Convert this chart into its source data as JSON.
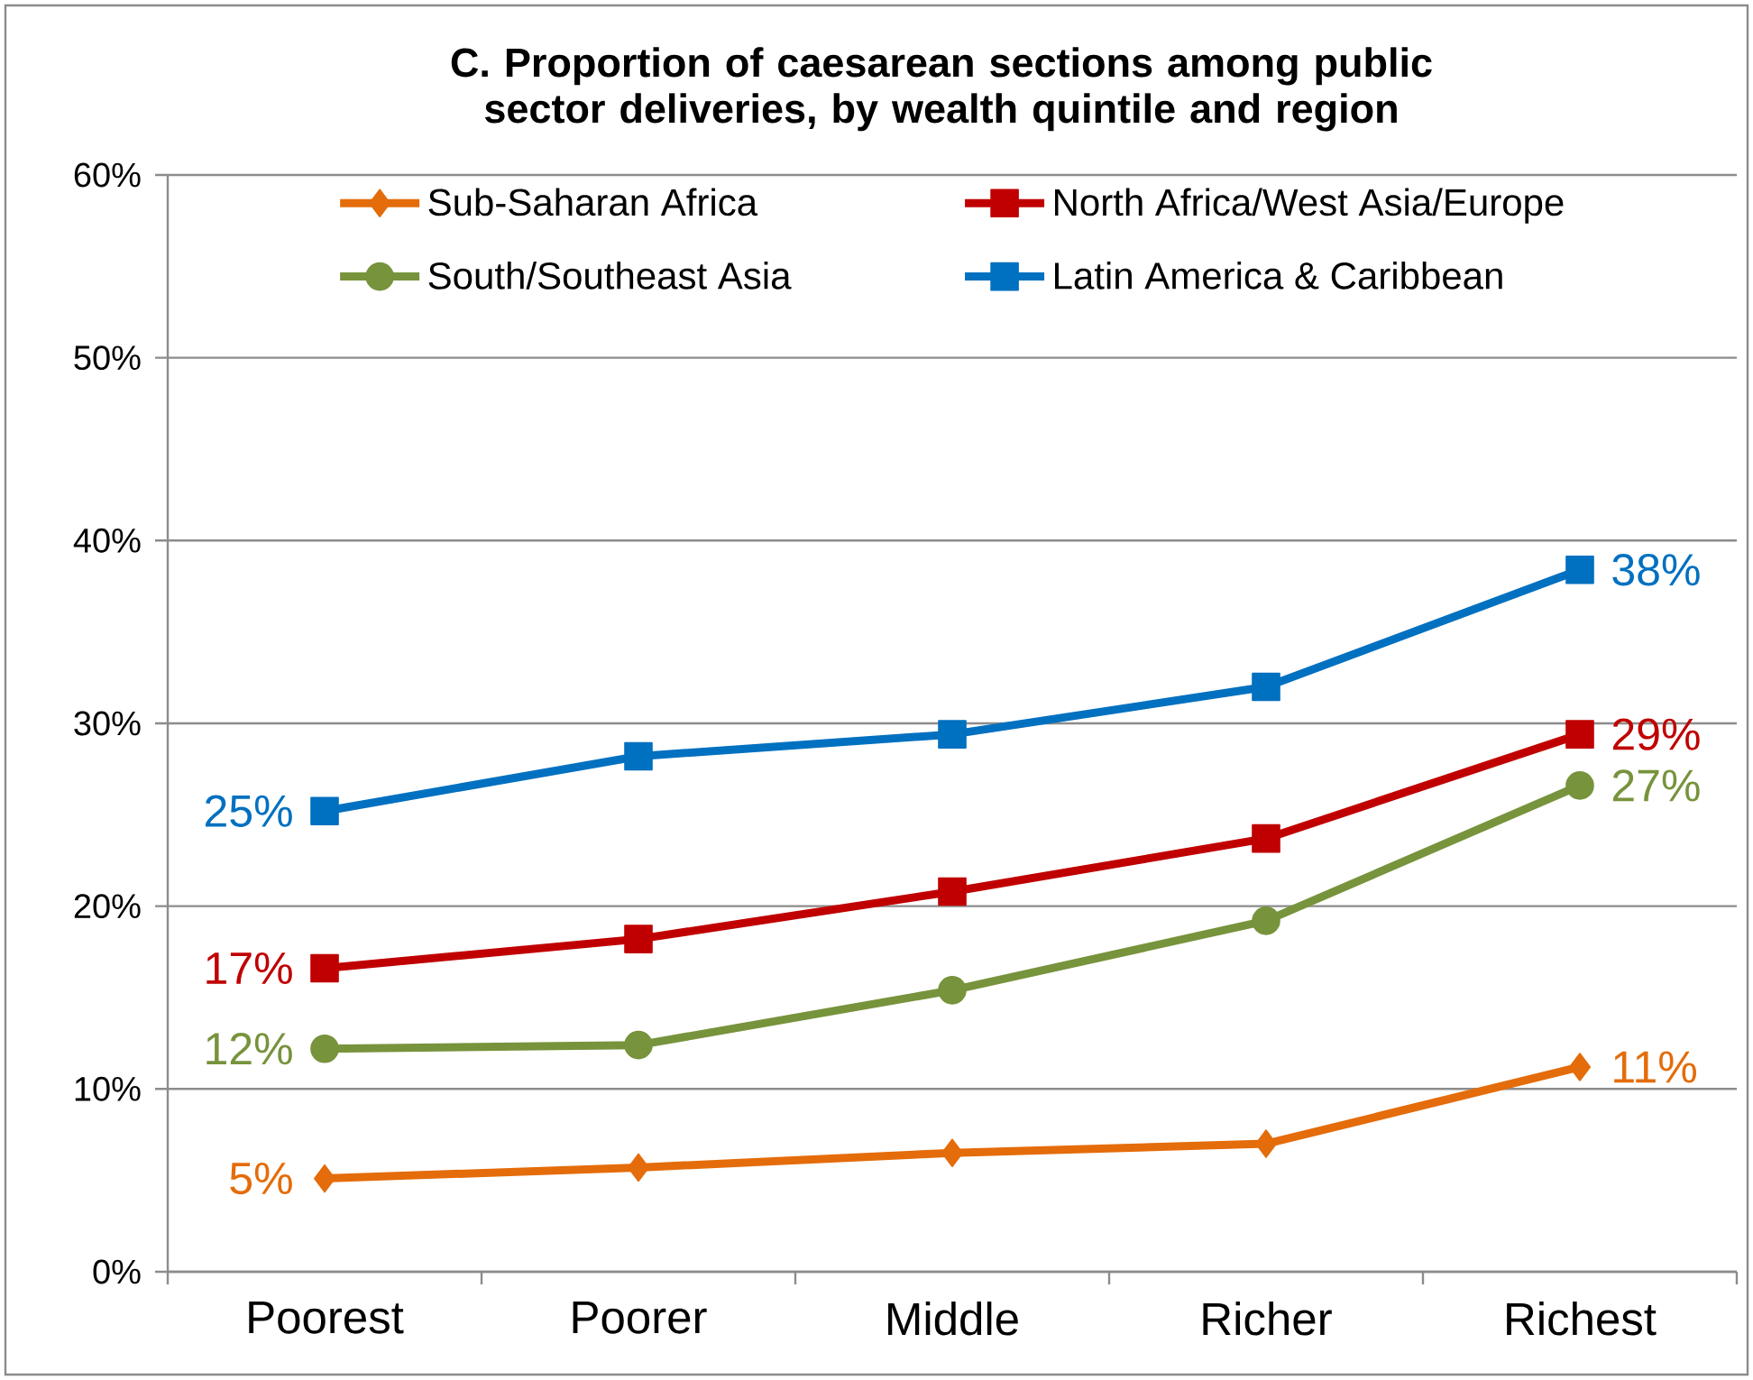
{
  "chart_data": {
    "type": "line",
    "title": "C. Proportion of caesarean sections among  public sector deliveries, by wealth quintile and region",
    "categories": [
      "Poorest",
      "Poorer",
      "Middle",
      "Richer",
      "Richest"
    ],
    "series": [
      {
        "name": "Sub-Saharan Africa",
        "color": "#e46c0a",
        "marker": "diamond",
        "values": [
          5.1,
          5.7,
          6.5,
          7.0,
          11.2
        ],
        "value_labels": [
          "5%",
          null,
          null,
          null,
          "11%"
        ]
      },
      {
        "name": "North Africa/West Asia/Europe",
        "color": "#c00000",
        "marker": "square",
        "values": [
          16.6,
          18.2,
          20.8,
          23.7,
          29.4
        ],
        "value_labels": [
          "17%",
          null,
          null,
          null,
          "29%"
        ]
      },
      {
        "name": "South/Southeast Asia",
        "color": "#77933c",
        "marker": "circle",
        "values": [
          12.2,
          12.4,
          15.4,
          19.2,
          26.6
        ],
        "value_labels": [
          "12%",
          null,
          null,
          null,
          "27%"
        ]
      },
      {
        "name": "Latin America & Caribbean",
        "color": "#0070c0",
        "marker": "square",
        "values": [
          25.2,
          28.2,
          29.4,
          32.0,
          38.4
        ],
        "value_labels": [
          "25%",
          null,
          null,
          null,
          "38%"
        ]
      }
    ],
    "ylim": [
      0,
      60
    ],
    "yticks": [
      {
        "value": 0,
        "label": "0%"
      },
      {
        "value": 10,
        "label": "10%"
      },
      {
        "value": 20,
        "label": "20%"
      },
      {
        "value": 30,
        "label": "30%"
      },
      {
        "value": 40,
        "label": "40%"
      },
      {
        "value": 50,
        "label": "50%"
      },
      {
        "value": 60,
        "label": "60%"
      }
    ],
    "grid": "y",
    "legend": "top",
    "line_style": "solid"
  }
}
